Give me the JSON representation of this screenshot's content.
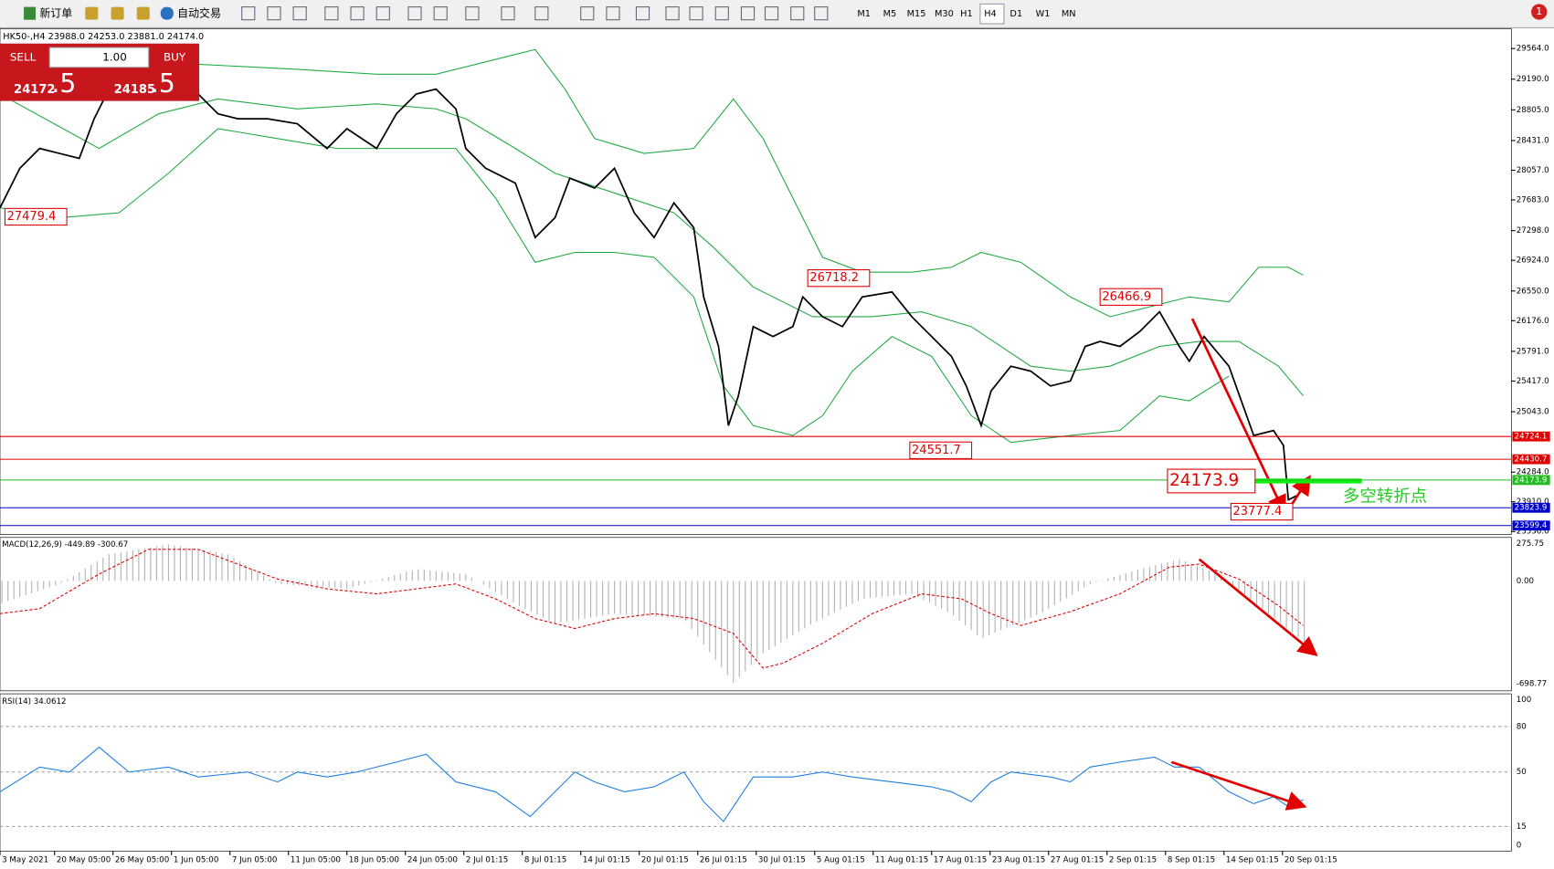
{
  "toolbar": {
    "new_order": "新订单",
    "auto_trading": "自动交易",
    "timeframes": [
      "M1",
      "M5",
      "M15",
      "M30",
      "H1",
      "H4",
      "D1",
      "W1",
      "MN"
    ],
    "active_timeframe": "H4",
    "alert_count": "1"
  },
  "chart": {
    "header": "HK50-,H4  23988.0 24253.0 23881.0 24174.0",
    "trade_panel": {
      "sell": "SELL",
      "buy": "BUY",
      "lot": "1.00",
      "sell_main": "24172",
      "sell_frac": ".5",
      "buy_main": "24185",
      "buy_frac": ".5"
    },
    "price_axis": [
      "29564.0",
      "29190.0",
      "28805.0",
      "28431.0",
      "28057.0",
      "27683.0",
      "27298.0",
      "26924.0",
      "26550.0",
      "26176.0",
      "25791.0",
      "25417.0",
      "25043.0",
      "24284.0",
      "23910.0",
      "23536.0"
    ],
    "price_lines": [
      {
        "label": "24724.1",
        "color": "#e00000"
      },
      {
        "label": "24430.7",
        "color": "#e00000"
      },
      {
        "label": "24173.9",
        "color": "#22bb22"
      },
      {
        "label": "23823.9",
        "color": "#0000cc"
      },
      {
        "label": "23599.4",
        "color": "#0000cc"
      }
    ],
    "annotations": [
      "27479.4",
      "26718.2",
      "26466.9",
      "24551.7",
      "24173.9",
      "23777.4"
    ],
    "turning_point": "多空转折点"
  },
  "macd": {
    "header": "MACD(12,26,9) -449.89 -300.67",
    "axis": [
      "275.75",
      "0.00",
      "-698.77"
    ]
  },
  "rsi": {
    "header": "RSI(14) 34.0612",
    "axis": [
      "100",
      "80",
      "50",
      "15",
      "0"
    ]
  },
  "time_axis": [
    "3 May 2021",
    "20 May 05:00",
    "26 May 05:00",
    "1 Jun 05:00",
    "7 Jun 05:00",
    "11 Jun 05:00",
    "18 Jun 05:00",
    "24 Jun 05:00",
    "2 Jul 01:15",
    "8 Jul 01:15",
    "14 Jul 01:15",
    "20 Jul 01:15",
    "26 Jul 01:15",
    "30 Jul 01:15",
    "5 Aug 01:15",
    "11 Aug 01:15",
    "17 Aug 01:15",
    "23 Aug 01:15",
    "27 Aug 01:15",
    "2 Sep 01:15",
    "8 Sep 01:15",
    "14 Sep 01:15",
    "20 Sep 01:15"
  ]
}
